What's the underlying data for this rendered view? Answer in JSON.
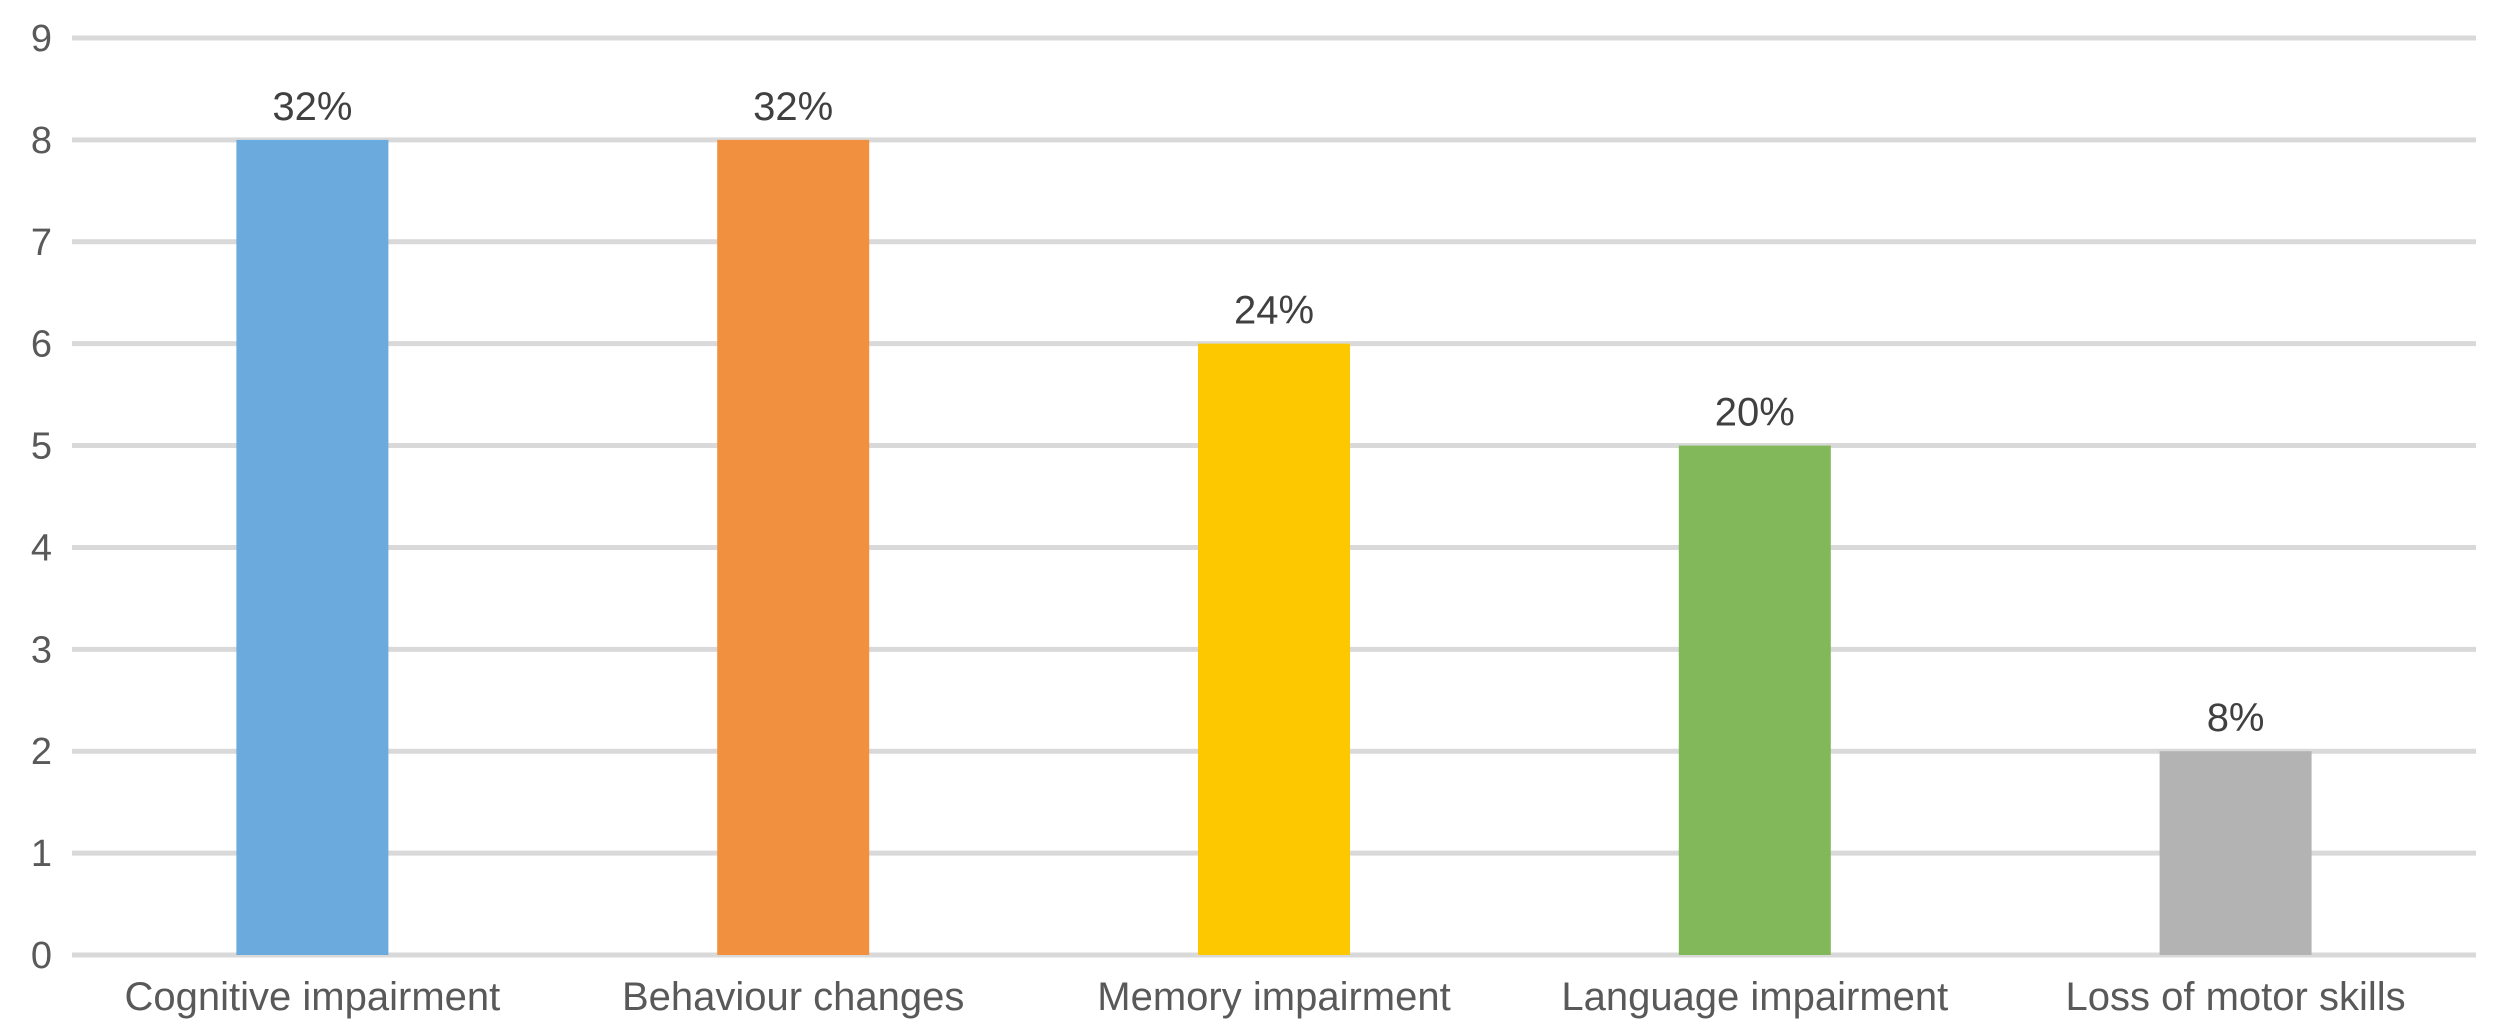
{
  "chart_data": {
    "type": "bar",
    "categories": [
      "Cognitive impairment",
      "Behaviour changes",
      "Memory impairment",
      "Language impairment",
      "Loss of motor skills"
    ],
    "values": [
      8,
      8,
      6,
      5,
      2
    ],
    "data_labels": [
      "32%",
      "32%",
      "24%",
      "20%",
      "8%"
    ],
    "colors": [
      "#6aaadd",
      "#f19140",
      "#fdc800",
      "#82b85a",
      "#b3b3b3"
    ],
    "title": "",
    "xlabel": "",
    "ylabel": "",
    "ylim": [
      0,
      9
    ],
    "yticks": [
      0,
      1,
      2,
      3,
      4,
      5,
      6,
      7,
      8,
      9
    ],
    "grid": true,
    "legend": "none"
  }
}
